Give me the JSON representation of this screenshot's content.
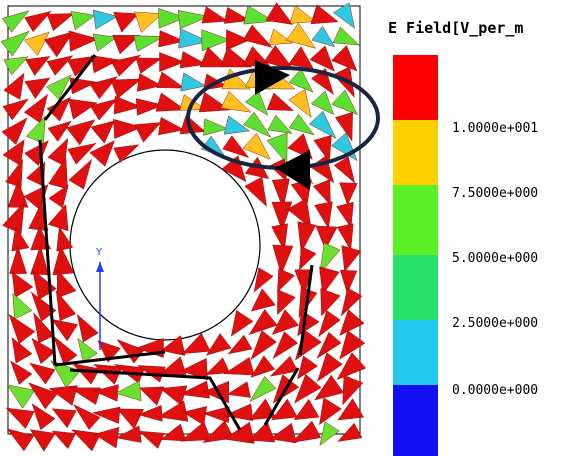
{
  "legend": {
    "title": "E Field[V_per_m",
    "labels": [
      "1.0000e+001",
      "7.5000e+000",
      "5.0000e+000",
      "2.5000e+000",
      "0.0000e+000"
    ]
  },
  "axis_label": "Y"
}
